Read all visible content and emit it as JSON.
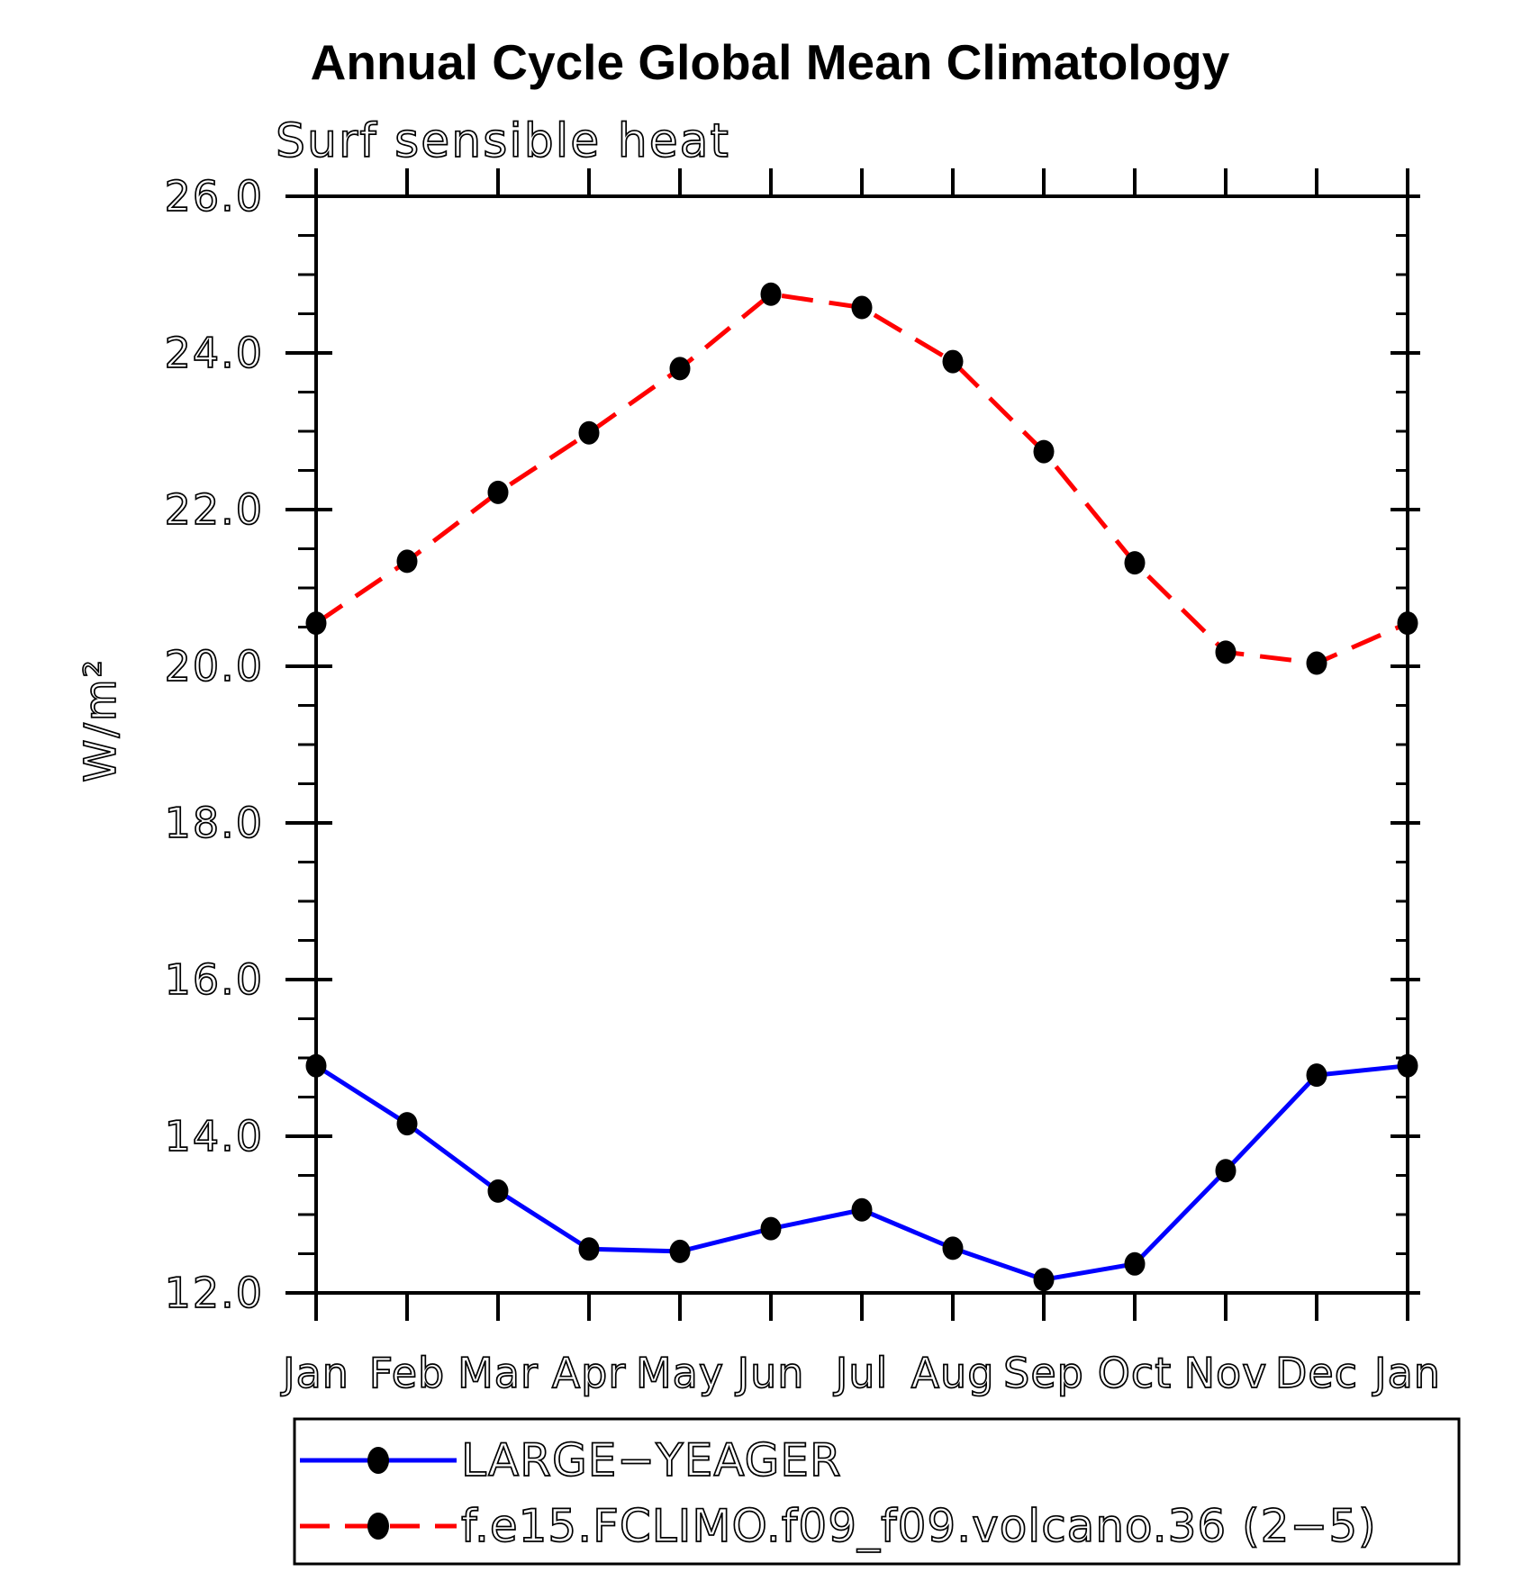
{
  "page": {
    "background": "#ffffff",
    "text_color": "#000000"
  },
  "chart_data": {
    "type": "line",
    "title": "Annual Cycle Global Mean Climatology",
    "subtitle": "Surf sensible heat",
    "ylabel": "W/m²",
    "xlabel": "",
    "ylim": [
      12.0,
      26.0
    ],
    "ytick_step": 2.0,
    "ytick_minor_step": 0.5,
    "ytick_labels": [
      "12.0",
      "14.0",
      "16.0",
      "18.0",
      "20.0",
      "22.0",
      "24.0",
      "26.0"
    ],
    "categories": [
      "Jan",
      "Feb",
      "Mar",
      "Apr",
      "May",
      "Jun",
      "Jul",
      "Aug",
      "Sep",
      "Oct",
      "Nov",
      "Dec",
      "Jan"
    ],
    "grid": false,
    "legend_position": "bottom-box",
    "series": [
      {
        "name": "LARGE−YEAGER",
        "color": "#0000ff",
        "line_style": "solid",
        "marker": "filled-circle",
        "marker_color": "#000000",
        "values": [
          14.9,
          14.16,
          13.3,
          12.56,
          12.53,
          12.82,
          13.06,
          12.57,
          12.17,
          12.37,
          13.56,
          14.78,
          14.9
        ]
      },
      {
        "name": "f.e15.FCLIMO.f09_f09.volcano.36 (2−5)",
        "color": "#ff0000",
        "line_style": "dashed",
        "marker": "filled-circle",
        "marker_color": "#000000",
        "values": [
          20.55,
          21.34,
          22.22,
          22.98,
          23.8,
          24.75,
          24.58,
          23.89,
          22.74,
          21.32,
          20.18,
          20.04,
          20.55
        ]
      }
    ]
  }
}
